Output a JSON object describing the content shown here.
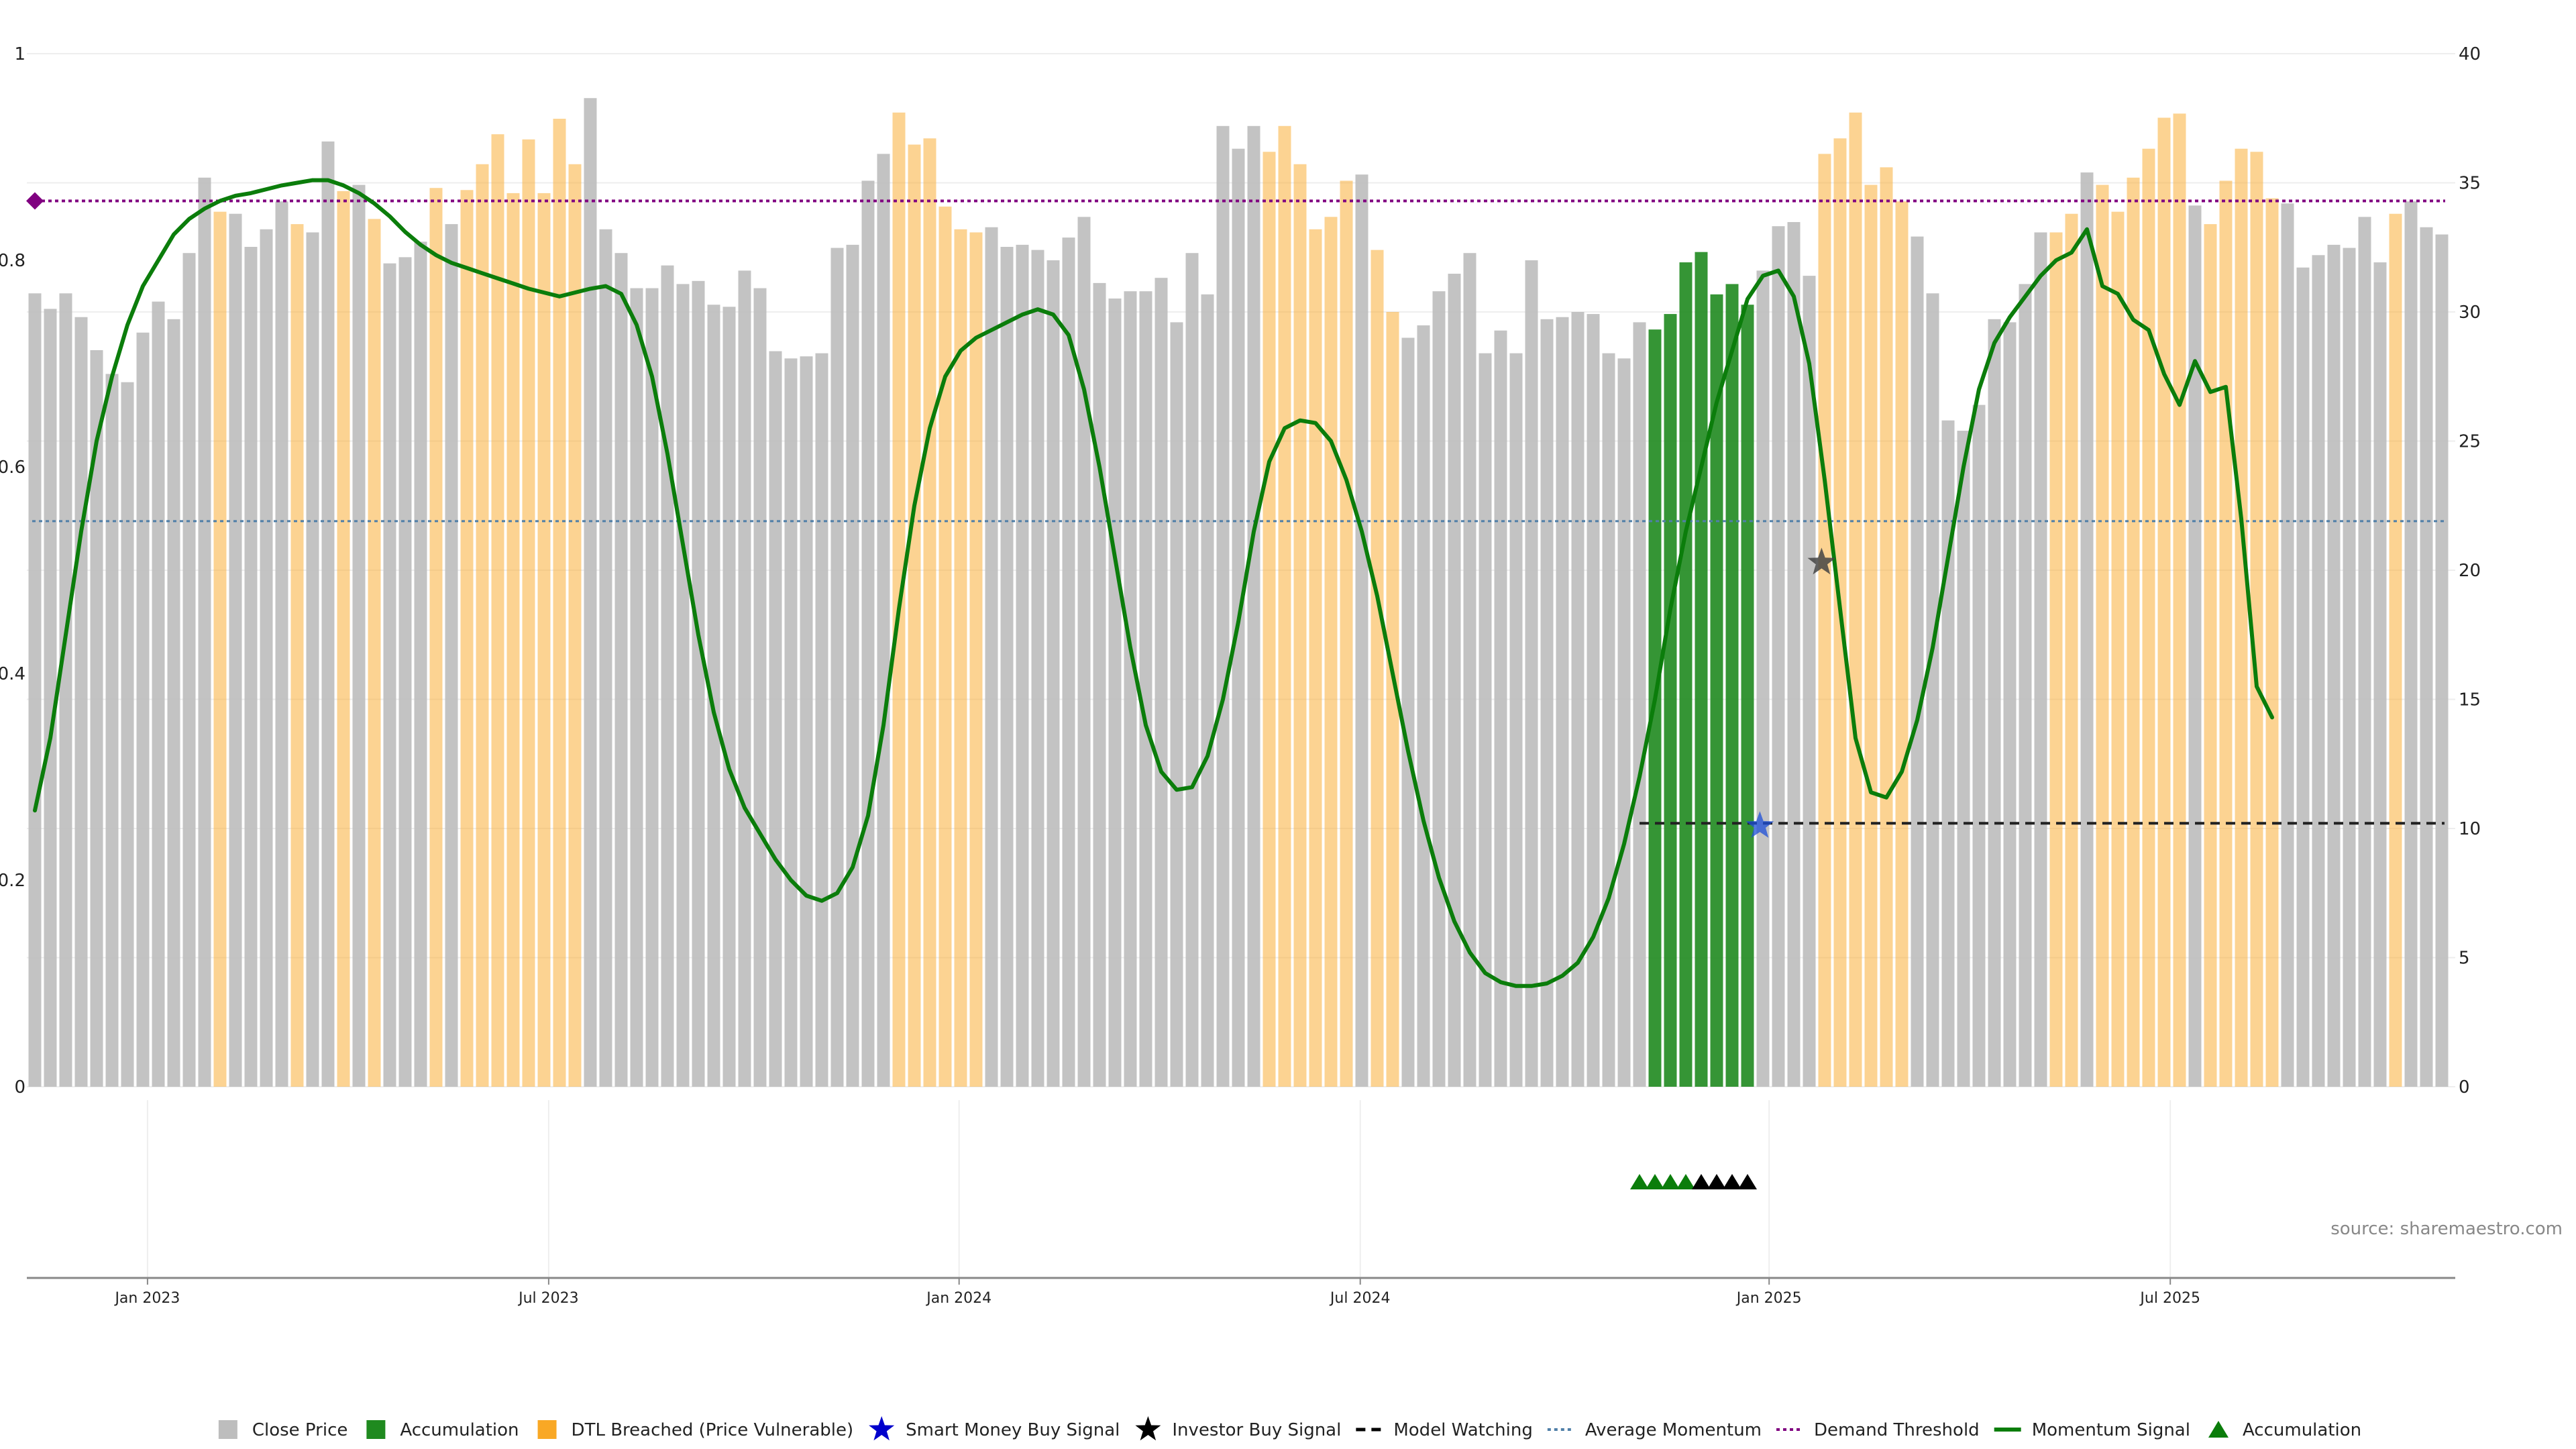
{
  "colors": {
    "close": "#bdbdbd",
    "accumulation": "#1f8a1f",
    "dtl": "#f9a825",
    "momentum": "#0b7d0b",
    "avg": "#4f7fa8",
    "demand": "#800080",
    "watching": "#222222",
    "investor": "#444444",
    "smart": "#1e4fd8"
  },
  "source": "source: sharemaestro.com",
  "legend": [
    {
      "label": "Close Price",
      "icon": "square",
      "color": "#bdbdbd"
    },
    {
      "label": "Accumulation",
      "icon": "square",
      "color": "#1f8a1f"
    },
    {
      "label": "DTL Breached (Price Vulnerable)",
      "icon": "square",
      "color": "#f9a825"
    },
    {
      "label": "Smart Money Buy Signal",
      "icon": "star",
      "color": "#0000cc"
    },
    {
      "label": "Investor Buy Signal",
      "icon": "star",
      "color": "#000000"
    },
    {
      "label": "Model Watching",
      "icon": "dash",
      "color": "#000000"
    },
    {
      "label": "Average Momentum",
      "icon": "dot",
      "color": "#4f7fa8"
    },
    {
      "label": "Demand Threshold",
      "icon": "dot",
      "color": "#800080"
    },
    {
      "label": "Momentum Signal",
      "icon": "line",
      "color": "#0b7d0b"
    },
    {
      "label": "Accumulation",
      "icon": "triangle",
      "color": "#0b7d0b"
    }
  ],
  "chart_data": {
    "type": "bar",
    "left_axis": {
      "ticks": [
        "0",
        "0.2",
        "0.4",
        "0.6",
        "0.8",
        "1"
      ],
      "range": [
        0,
        1
      ]
    },
    "right_axis": {
      "ticks": [
        "0",
        "5",
        "10",
        "15",
        "20",
        "25",
        "30",
        "35",
        "40"
      ],
      "range": [
        0,
        40
      ]
    },
    "x_ticks": [
      {
        "label": "Jan 2023",
        "week": 7.3
      },
      {
        "label": "Jul 2023",
        "week": 33.3
      },
      {
        "label": "Jan 2024",
        "week": 59.9
      },
      {
        "label": "Jul 2024",
        "week": 85.9
      },
      {
        "label": "Jan 2025",
        "week": 112.4
      },
      {
        "label": "Jul 2025",
        "week": 138.4
      }
    ],
    "bar_types": "CCCCCCCCCCCCDCCCCDCCDCDCCCDCDDDDDDDDCCCCCCCCCCCCCCCCCCCCDDDDDDCCCCCCCCCCCCCCCCCCDDDDDDCDDCCCCCCCCCCCCCCCCAAAAAAACCCCDDDDDDCCCCCCCCCDDCDDDDDDCDDDDDCCCCCCCDC",
    "bars": [
      0.768,
      0.753,
      0.768,
      0.745,
      0.713,
      0.69,
      0.682,
      0.73,
      0.76,
      0.743,
      0.807,
      0.88,
      0.847,
      0.845,
      0.813,
      0.83,
      0.857,
      0.835,
      0.827,
      0.915,
      0.867,
      0.873,
      0.84,
      0.797,
      0.803,
      0.818,
      0.87,
      0.835,
      0.868,
      0.893,
      0.922,
      0.865,
      0.917,
      0.865,
      0.937,
      0.893,
      0.957,
      0.83,
      0.807,
      0.773,
      0.773,
      0.795,
      0.777,
      0.78,
      0.757,
      0.755,
      0.79,
      0.773,
      0.712,
      0.705,
      0.707,
      0.71,
      0.812,
      0.815,
      0.877,
      0.903,
      0.943,
      0.912,
      0.918,
      0.852,
      0.83,
      0.827,
      0.832,
      0.813,
      0.815,
      0.81,
      0.8,
      0.822,
      0.842,
      0.778,
      0.763,
      0.77,
      0.77,
      0.783,
      0.74,
      0.807,
      0.767,
      0.93,
      0.908,
      0.93,
      0.905,
      0.93,
      0.893,
      0.83,
      0.842,
      0.877,
      0.883,
      0.81,
      0.75,
      0.725,
      0.737,
      0.77,
      0.787,
      0.807,
      0.71,
      0.732,
      0.71,
      0.8,
      0.743,
      0.745,
      0.75,
      0.748,
      0.71,
      0.705,
      0.74,
      0.733,
      0.748,
      0.798,
      0.808,
      0.767,
      0.777,
      0.757,
      0.79,
      0.833,
      0.837,
      0.785,
      0.903,
      0.918,
      0.943,
      0.873,
      0.89,
      0.857,
      0.823,
      0.768,
      0.645,
      0.635,
      0.66,
      0.743,
      0.74,
      0.777,
      0.827,
      0.827,
      0.845,
      0.885,
      0.873,
      0.847,
      0.88,
      0.908,
      0.938,
      0.942,
      0.853,
      0.835,
      0.877,
      0.908,
      0.905,
      0.86,
      0.855,
      0.793,
      0.805,
      0.815,
      0.812,
      0.842,
      0.798,
      0.845,
      0.857,
      0.832,
      0.825
    ],
    "momentum": [
      [
        0,
        10.7
      ],
      [
        1,
        13.5
      ],
      [
        2,
        17.5
      ],
      [
        3,
        21.5
      ],
      [
        4,
        25
      ],
      [
        5,
        27.5
      ],
      [
        6,
        29.5
      ],
      [
        7,
        31
      ],
      [
        8,
        32
      ],
      [
        9,
        33
      ],
      [
        10,
        33.6
      ],
      [
        11,
        34
      ],
      [
        12,
        34.3
      ],
      [
        13,
        34.5
      ],
      [
        14,
        34.6
      ],
      [
        15,
        34.75
      ],
      [
        16,
        34.9
      ],
      [
        17,
        35
      ],
      [
        18,
        35.1
      ],
      [
        19,
        35.1
      ],
      [
        20,
        34.9
      ],
      [
        21,
        34.6
      ],
      [
        22,
        34.2
      ],
      [
        23,
        33.7
      ],
      [
        24,
        33.1
      ],
      [
        25,
        32.6
      ],
      [
        26,
        32.2
      ],
      [
        27,
        31.9
      ],
      [
        28,
        31.7
      ],
      [
        29,
        31.5
      ],
      [
        30,
        31.3
      ],
      [
        31,
        31.1
      ],
      [
        32,
        30.9
      ],
      [
        33,
        30.75
      ],
      [
        34,
        30.6
      ],
      [
        35,
        30.75
      ],
      [
        36,
        30.9
      ],
      [
        37,
        31
      ],
      [
        38,
        30.7
      ],
      [
        39,
        29.5
      ],
      [
        40,
        27.5
      ],
      [
        41,
        24.5
      ],
      [
        42,
        21
      ],
      [
        43,
        17.5
      ],
      [
        44,
        14.5
      ],
      [
        45,
        12.3
      ],
      [
        46,
        10.8
      ],
      [
        47,
        9.8
      ],
      [
        48,
        8.8
      ],
      [
        49,
        8
      ],
      [
        50,
        7.4
      ],
      [
        51,
        7.2
      ],
      [
        52,
        7.5
      ],
      [
        53,
        8.5
      ],
      [
        54,
        10.5
      ],
      [
        55,
        14
      ],
      [
        56,
        18.5
      ],
      [
        57,
        22.5
      ],
      [
        58,
        25.5
      ],
      [
        59,
        27.5
      ],
      [
        60,
        28.5
      ],
      [
        61,
        29
      ],
      [
        62,
        29.3
      ],
      [
        63,
        29.6
      ],
      [
        64,
        29.9
      ],
      [
        65,
        30.1
      ],
      [
        66,
        29.9
      ],
      [
        67,
        29.1
      ],
      [
        68,
        27
      ],
      [
        69,
        24
      ],
      [
        70,
        20.5
      ],
      [
        71,
        17
      ],
      [
        72,
        14
      ],
      [
        73,
        12.2
      ],
      [
        74,
        11.5
      ],
      [
        75,
        11.6
      ],
      [
        76,
        12.8
      ],
      [
        77,
        15
      ],
      [
        78,
        18
      ],
      [
        79,
        21.5
      ],
      [
        80,
        24.2
      ],
      [
        81,
        25.5
      ],
      [
        82,
        25.8
      ],
      [
        83,
        25.7
      ],
      [
        84,
        25
      ],
      [
        85,
        23.5
      ],
      [
        86,
        21.5
      ],
      [
        87,
        19
      ],
      [
        88,
        16
      ],
      [
        89,
        13
      ],
      [
        90,
        10.3
      ],
      [
        91,
        8.1
      ],
      [
        92,
        6.4
      ],
      [
        93,
        5.2
      ],
      [
        94,
        4.4
      ],
      [
        95,
        4.05
      ],
      [
        96,
        3.9
      ],
      [
        97,
        3.9
      ],
      [
        98,
        4
      ],
      [
        99,
        4.3
      ],
      [
        100,
        4.8
      ],
      [
        101,
        5.8
      ],
      [
        102,
        7.3
      ],
      [
        103,
        9.4
      ],
      [
        104,
        12
      ],
      [
        105,
        15
      ],
      [
        106,
        18.5
      ],
      [
        107,
        21.5
      ],
      [
        108,
        24
      ],
      [
        109,
        26.5
      ],
      [
        110,
        28.5
      ],
      [
        111,
        30.5
      ],
      [
        112,
        31.4
      ],
      [
        113,
        31.6
      ],
      [
        114,
        30.6
      ],
      [
        115,
        28
      ],
      [
        116,
        23.5
      ],
      [
        117,
        18.5
      ],
      [
        118,
        13.5
      ],
      [
        119,
        11.4
      ],
      [
        120,
        11.2
      ],
      [
        121,
        12.2
      ],
      [
        122,
        14.2
      ],
      [
        123,
        17
      ],
      [
        124,
        20.5
      ],
      [
        125,
        24
      ],
      [
        126,
        27
      ],
      [
        127,
        28.8
      ],
      [
        128,
        29.8
      ],
      [
        129,
        30.6
      ],
      [
        130,
        31.4
      ],
      [
        131,
        32
      ],
      [
        132,
        32.3
      ],
      [
        133,
        33.2
      ],
      [
        134,
        31
      ],
      [
        135,
        30.7
      ],
      [
        136,
        29.7
      ],
      [
        137,
        29.3
      ],
      [
        138,
        27.6
      ],
      [
        139,
        26.4
      ],
      [
        140,
        28.1
      ],
      [
        141,
        26.9
      ],
      [
        142,
        27.1
      ],
      [
        143,
        22
      ],
      [
        144,
        15.5
      ],
      [
        145,
        14.3
      ]
    ],
    "avg_momentum": 21.9,
    "demand_threshold": 34.3,
    "model_watching": {
      "from": 104,
      "to": 156,
      "value": 10.2
    },
    "smart_money_buy": [
      {
        "week": 111.8,
        "value": 10.1
      }
    ],
    "investor_buy": [
      {
        "week": 115.8,
        "value": 20.3
      }
    ],
    "accumulation_triangles": [
      104,
      105,
      106,
      107
    ],
    "watching_triangles": [
      108,
      109,
      110,
      111
    ]
  }
}
